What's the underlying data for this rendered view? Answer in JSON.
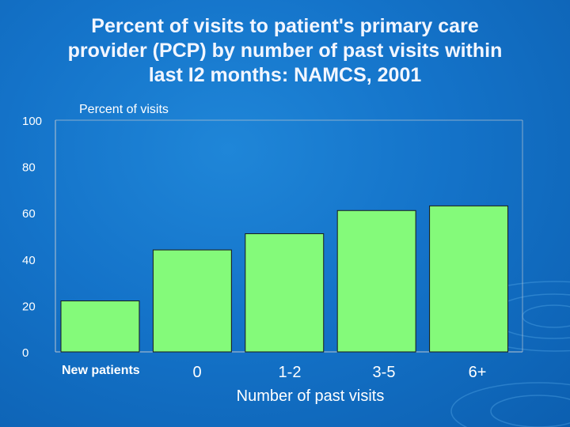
{
  "chart_data": {
    "type": "bar",
    "title_lines": [
      "Percent of visits to patient's primary care",
      "provider (PCP) by number of past visits within",
      "last I2 months: NAMCS, 2001"
    ],
    "ylabel": "Percent of visits",
    "xlabel": "Number of past visits",
    "categories": [
      "New patients",
      "0",
      "1-2",
      "3-5",
      "6+"
    ],
    "values": [
      22,
      44,
      51,
      61,
      63
    ],
    "ylim": [
      0,
      100
    ],
    "yticks": [
      0,
      20,
      40,
      60,
      80,
      100
    ],
    "grid": false,
    "colors": {
      "bar_fill": "#84fa7a",
      "bar_stroke": "#1a1a1a",
      "axis": "#b8c4d0"
    }
  }
}
